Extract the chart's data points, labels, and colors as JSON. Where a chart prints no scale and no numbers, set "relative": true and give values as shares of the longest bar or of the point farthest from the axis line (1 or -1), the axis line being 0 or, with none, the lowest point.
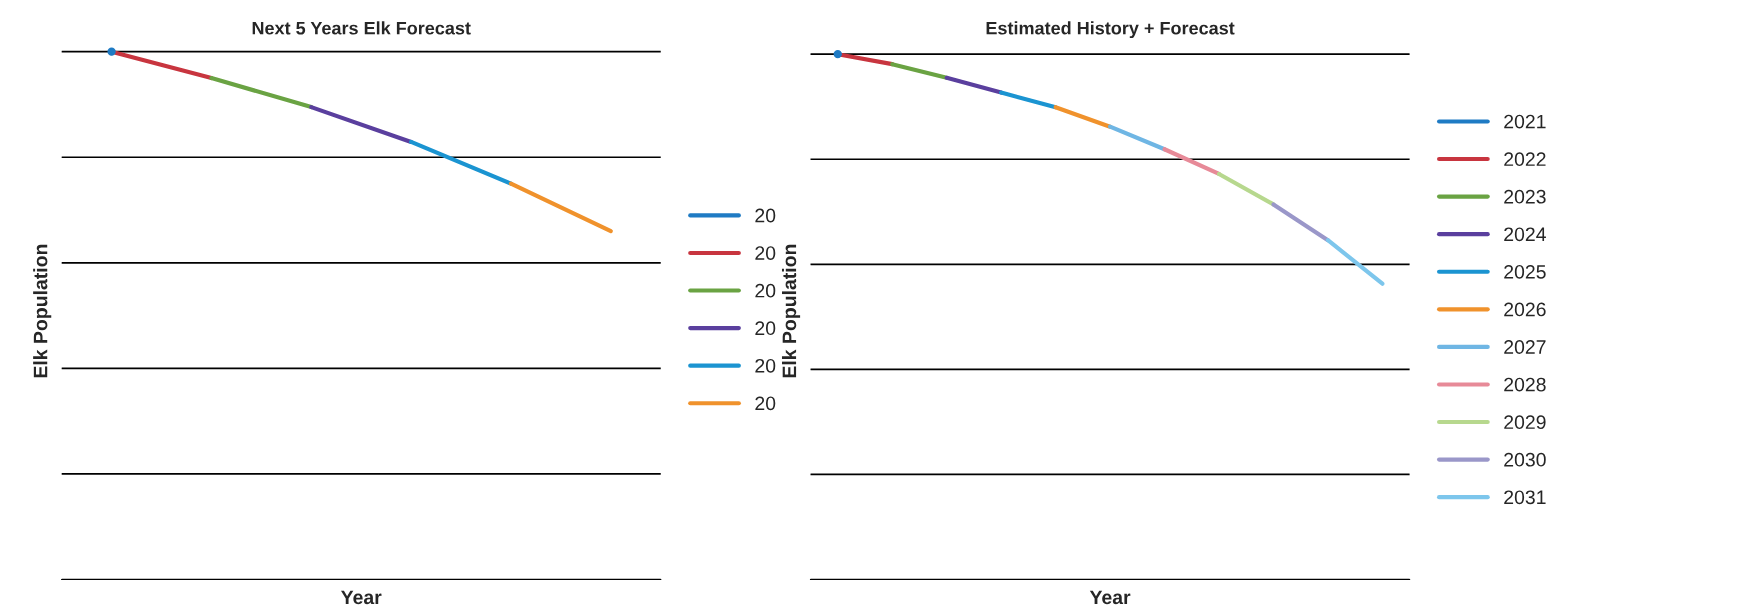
{
  "chart_data": [
    {
      "type": "line",
      "title": "Next 5 Years Elk Forecast",
      "xlabel": "Year",
      "ylabel": "Elk Population",
      "relative": true,
      "grid": "y",
      "legend": "right",
      "categories": [
        null,
        null,
        null,
        null,
        null,
        null
      ],
      "series": [
        {
          "name": "20",
          "color": "#1f7bc4",
          "marker": "circle",
          "values": [
            1.0,
            null,
            null,
            null,
            null,
            null
          ]
        },
        {
          "name": "20",
          "color": "#c8353f",
          "values": [
            1.0,
            0.95,
            null,
            null,
            null,
            null
          ]
        },
        {
          "name": "20",
          "color": "#6aa343",
          "values": [
            null,
            0.95,
            0.895,
            null,
            null,
            null
          ]
        },
        {
          "name": "20",
          "color": "#5a3f9e",
          "values": [
            null,
            null,
            0.895,
            0.829,
            null,
            null
          ]
        },
        {
          "name": "20",
          "color": "#1b94d1",
          "values": [
            null,
            null,
            null,
            0.829,
            0.75,
            null
          ]
        },
        {
          "name": "20",
          "color": "#f0922c",
          "values": [
            null,
            null,
            null,
            null,
            0.75,
            0.66
          ]
        }
      ]
    },
    {
      "type": "line",
      "title": "Estimated History + Forecast",
      "xlabel": "Year",
      "ylabel": "Elk Population",
      "relative": true,
      "grid": "y",
      "legend": "right",
      "categories": [
        null,
        null,
        null,
        null,
        null,
        null,
        null,
        null,
        null,
        null,
        null
      ],
      "series": [
        {
          "name": "2021",
          "color": "#1f7bc4",
          "marker": "circle",
          "values": [
            1.0,
            null,
            null,
            null,
            null,
            null,
            null,
            null,
            null,
            null,
            null
          ]
        },
        {
          "name": "2022",
          "color": "#c8353f",
          "values": [
            1.0,
            0.981,
            null,
            null,
            null,
            null,
            null,
            null,
            null,
            null,
            null
          ]
        },
        {
          "name": "2023",
          "color": "#6aa343",
          "values": [
            null,
            0.981,
            0.955,
            null,
            null,
            null,
            null,
            null,
            null,
            null,
            null
          ]
        },
        {
          "name": "2024",
          "color": "#5a3f9e",
          "values": [
            null,
            null,
            0.955,
            0.927,
            null,
            null,
            null,
            null,
            null,
            null,
            null
          ]
        },
        {
          "name": "2025",
          "color": "#1b94d1",
          "values": [
            null,
            null,
            null,
            0.927,
            0.899,
            null,
            null,
            null,
            null,
            null,
            null
          ]
        },
        {
          "name": "2026",
          "color": "#f0922c",
          "values": [
            null,
            null,
            null,
            null,
            0.899,
            0.862,
            null,
            null,
            null,
            null,
            null
          ]
        },
        {
          "name": "2027",
          "color": "#6fb6e4",
          "values": [
            null,
            null,
            null,
            null,
            null,
            0.862,
            0.819,
            null,
            null,
            null,
            null
          ]
        },
        {
          "name": "2028",
          "color": "#e78a98",
          "values": [
            null,
            null,
            null,
            null,
            null,
            null,
            0.819,
            0.772,
            null,
            null,
            null
          ]
        },
        {
          "name": "2029",
          "color": "#b7d88e",
          "values": [
            null,
            null,
            null,
            null,
            null,
            null,
            null,
            0.772,
            0.714,
            null,
            null
          ]
        },
        {
          "name": "2030",
          "color": "#9a97c9",
          "values": [
            null,
            null,
            null,
            null,
            null,
            null,
            null,
            null,
            0.714,
            0.646,
            null
          ]
        },
        {
          "name": "2031",
          "color": "#7dc6ec",
          "values": [
            null,
            null,
            null,
            null,
            null,
            null,
            null,
            null,
            null,
            0.646,
            0.563
          ]
        }
      ]
    }
  ]
}
